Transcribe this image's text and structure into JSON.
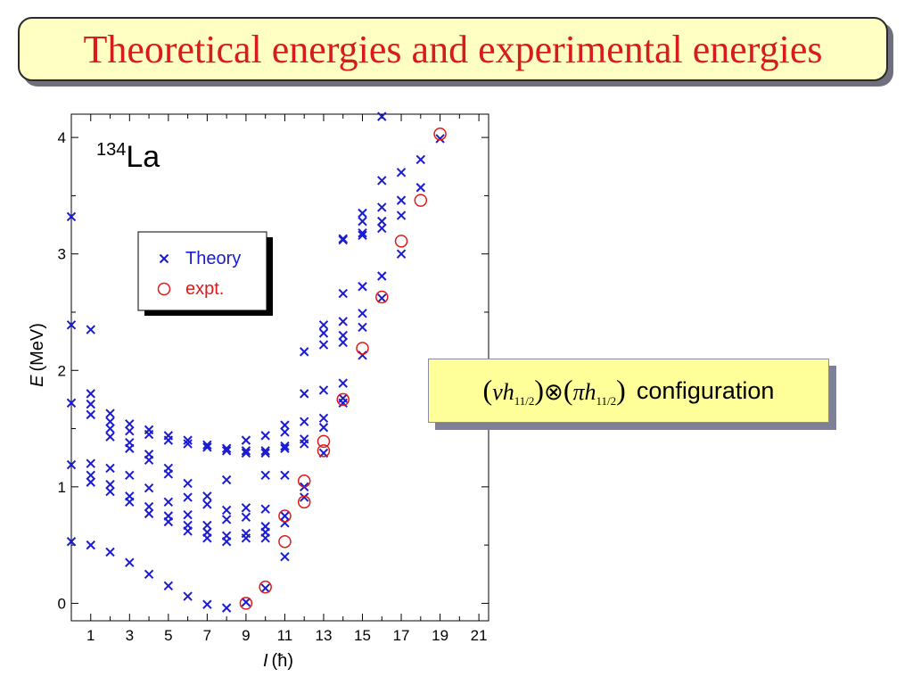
{
  "title": "Theoretical energies and experimental energies",
  "config_label": {
    "nu": "ν",
    "h": "h",
    "sub": "11/2",
    "otimes": "⊗",
    "pi": "π",
    "word": "configuration"
  },
  "colors": {
    "theory": "#1b1bd0",
    "expt": "#e01818",
    "title": "#d81b1b"
  },
  "chart_data": {
    "type": "scatter",
    "nucleus_mass": "134",
    "nucleus_symbol": "La",
    "xlabel_symbol": "I",
    "xlabel_unit": "(ħ)",
    "ylabel_symbol": "E",
    "ylabel_unit": "(MeV)",
    "xlim": [
      0,
      21.5
    ],
    "ylim": [
      -0.15,
      4.2
    ],
    "x_ticks": [
      1,
      3,
      5,
      7,
      9,
      11,
      13,
      15,
      17,
      19,
      21
    ],
    "x_minor_ticks": [
      0,
      2,
      4,
      6,
      8,
      10,
      12,
      14,
      16,
      18,
      20
    ],
    "y_ticks": [
      0,
      1,
      2,
      3,
      4
    ],
    "legend": {
      "position": "upper-left",
      "entries": [
        "Theory",
        "expt."
      ]
    },
    "series": [
      {
        "name": "Theory",
        "marker": "x",
        "points": [
          [
            0,
            0.53
          ],
          [
            0,
            1.19
          ],
          [
            0,
            1.72
          ],
          [
            0,
            2.39
          ],
          [
            0,
            3.32
          ],
          [
            1,
            0.5
          ],
          [
            1,
            1.04
          ],
          [
            1,
            1.1
          ],
          [
            1,
            1.2
          ],
          [
            1,
            1.62
          ],
          [
            1,
            1.71
          ],
          [
            1,
            1.8
          ],
          [
            1,
            2.35
          ],
          [
            2,
            0.44
          ],
          [
            2,
            0.96
          ],
          [
            2,
            1.02
          ],
          [
            2,
            1.16
          ],
          [
            2,
            1.43
          ],
          [
            2,
            1.5
          ],
          [
            2,
            1.56
          ],
          [
            2,
            1.63
          ],
          [
            3,
            0.35
          ],
          [
            3,
            0.87
          ],
          [
            3,
            0.92
          ],
          [
            3,
            1.1
          ],
          [
            3,
            1.33
          ],
          [
            3,
            1.38
          ],
          [
            3,
            1.48
          ],
          [
            3,
            1.54
          ],
          [
            4,
            0.25
          ],
          [
            4,
            0.77
          ],
          [
            4,
            0.83
          ],
          [
            4,
            0.99
          ],
          [
            4,
            1.23
          ],
          [
            4,
            1.28
          ],
          [
            4,
            1.45
          ],
          [
            4,
            1.49
          ],
          [
            5,
            0.15
          ],
          [
            5,
            0.7
          ],
          [
            5,
            0.75
          ],
          [
            5,
            0.87
          ],
          [
            5,
            1.11
          ],
          [
            5,
            1.16
          ],
          [
            5,
            1.4
          ],
          [
            5,
            1.44
          ],
          [
            6,
            0.06
          ],
          [
            6,
            0.62
          ],
          [
            6,
            0.67
          ],
          [
            6,
            0.76
          ],
          [
            6,
            0.91
          ],
          [
            6,
            1.03
          ],
          [
            6,
            1.37
          ],
          [
            6,
            1.4
          ],
          [
            7,
            -0.01
          ],
          [
            7,
            0.56
          ],
          [
            7,
            0.61
          ],
          [
            7,
            0.67
          ],
          [
            7,
            0.85
          ],
          [
            7,
            0.92
          ],
          [
            7,
            1.34
          ],
          [
            7,
            1.36
          ],
          [
            8,
            -0.04
          ],
          [
            8,
            0.53
          ],
          [
            8,
            0.58
          ],
          [
            8,
            0.72
          ],
          [
            8,
            0.8
          ],
          [
            8,
            1.06
          ],
          [
            8,
            1.31
          ],
          [
            8,
            1.33
          ],
          [
            9,
            0.01
          ],
          [
            9,
            0.56
          ],
          [
            9,
            0.6
          ],
          [
            9,
            0.74
          ],
          [
            9,
            0.82
          ],
          [
            9,
            1.29
          ],
          [
            9,
            1.31
          ],
          [
            9,
            1.4
          ],
          [
            10,
            0.13
          ],
          [
            10,
            0.56
          ],
          [
            10,
            0.61
          ],
          [
            10,
            0.66
          ],
          [
            10,
            0.81
          ],
          [
            10,
            1.1
          ],
          [
            10,
            1.29
          ],
          [
            10,
            1.31
          ],
          [
            10,
            1.44
          ],
          [
            11,
            0.4
          ],
          [
            11,
            0.69
          ],
          [
            11,
            0.75
          ],
          [
            11,
            1.1
          ],
          [
            11,
            1.33
          ],
          [
            11,
            1.35
          ],
          [
            11,
            1.47
          ],
          [
            11,
            1.53
          ],
          [
            12,
            0.91
          ],
          [
            12,
            1.0
          ],
          [
            12,
            1.37
          ],
          [
            12,
            1.41
          ],
          [
            12,
            1.56
          ],
          [
            12,
            1.8
          ],
          [
            12,
            2.16
          ],
          [
            13,
            1.29
          ],
          [
            13,
            1.51
          ],
          [
            13,
            1.59
          ],
          [
            13,
            1.83
          ],
          [
            13,
            2.22
          ],
          [
            13,
            2.32
          ],
          [
            13,
            2.39
          ],
          [
            14,
            1.72
          ],
          [
            14,
            1.76
          ],
          [
            14,
            1.89
          ],
          [
            14,
            2.24
          ],
          [
            14,
            2.3
          ],
          [
            14,
            2.42
          ],
          [
            14,
            2.66
          ],
          [
            14,
            3.12
          ],
          [
            14,
            3.13
          ],
          [
            15,
            2.13
          ],
          [
            15,
            2.37
          ],
          [
            15,
            2.49
          ],
          [
            15,
            2.72
          ],
          [
            15,
            3.16
          ],
          [
            15,
            3.18
          ],
          [
            15,
            3.28
          ],
          [
            15,
            3.35
          ],
          [
            16,
            2.62
          ],
          [
            16,
            2.81
          ],
          [
            16,
            3.22
          ],
          [
            16,
            3.28
          ],
          [
            16,
            3.4
          ],
          [
            16,
            3.63
          ],
          [
            16,
            4.18
          ],
          [
            17,
            3.0
          ],
          [
            17,
            3.33
          ],
          [
            17,
            3.46
          ],
          [
            17,
            3.7
          ],
          [
            18,
            3.57
          ],
          [
            18,
            3.81
          ],
          [
            19,
            3.99
          ]
        ]
      },
      {
        "name": "expt.",
        "marker": "o",
        "points": [
          [
            9,
            0.0
          ],
          [
            10,
            0.14
          ],
          [
            11,
            0.53
          ],
          [
            11,
            0.75
          ],
          [
            12,
            0.87
          ],
          [
            12,
            1.05
          ],
          [
            13,
            1.31
          ],
          [
            13,
            1.39
          ],
          [
            14,
            1.75
          ],
          [
            15,
            2.19
          ],
          [
            16,
            2.63
          ],
          [
            17,
            3.11
          ],
          [
            18,
            3.46
          ],
          [
            19,
            4.03
          ]
        ]
      }
    ]
  }
}
